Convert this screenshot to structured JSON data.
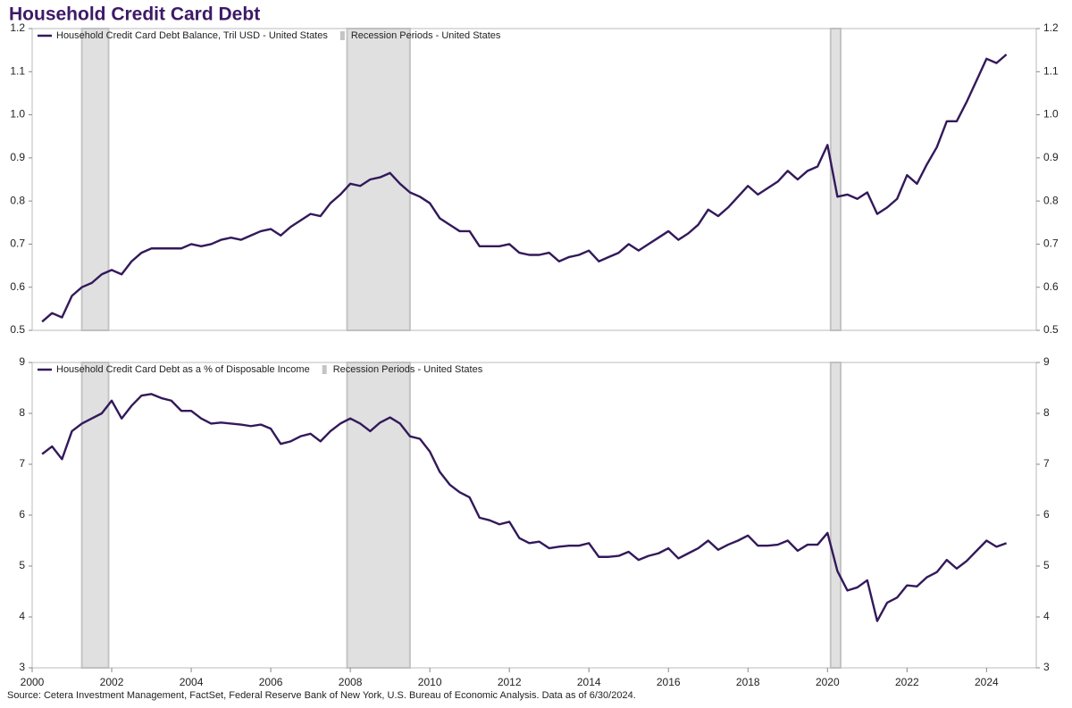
{
  "title": "Household Credit Card Debt",
  "source": "Source: Cetera Investment Management, FactSet, Federal Reserve Bank of New York, U.S. Bureau of Economic Analysis. Data as of 6/30/2024.",
  "chart_data": [
    {
      "type": "line",
      "x": [
        2000.25,
        2000.5,
        2000.75,
        2001,
        2001.25,
        2001.5,
        2001.75,
        2002,
        2002.25,
        2002.5,
        2002.75,
        2003,
        2003.25,
        2003.5,
        2003.75,
        2004,
        2004.25,
        2004.5,
        2004.75,
        2005,
        2005.25,
        2005.5,
        2005.75,
        2006,
        2006.25,
        2006.5,
        2006.75,
        2007,
        2007.25,
        2007.5,
        2007.75,
        2008,
        2008.25,
        2008.5,
        2008.75,
        2009,
        2009.25,
        2009.5,
        2009.75,
        2010,
        2010.25,
        2010.5,
        2010.75,
        2011,
        2011.25,
        2011.5,
        2011.75,
        2012,
        2012.25,
        2012.5,
        2012.75,
        2013,
        2013.25,
        2013.5,
        2013.75,
        2014,
        2014.25,
        2014.5,
        2014.75,
        2015,
        2015.25,
        2015.5,
        2015.75,
        2016,
        2016.25,
        2016.5,
        2016.75,
        2017,
        2017.25,
        2017.5,
        2017.75,
        2018,
        2018.25,
        2018.5,
        2018.75,
        2019,
        2019.25,
        2019.5,
        2019.75,
        2020,
        2020.25,
        2020.5,
        2020.75,
        2021,
        2021.25,
        2021.5,
        2021.75,
        2022,
        2022.25,
        2022.5,
        2022.75,
        2023,
        2023.25,
        2023.5,
        2023.75,
        2024,
        2024.25,
        2024.5
      ],
      "series": [
        {
          "name": "Household Credit Card Debt Balance, Tril USD - United States",
          "color": "#33195a",
          "values": [
            0.52,
            0.54,
            0.53,
            0.58,
            0.6,
            0.61,
            0.63,
            0.64,
            0.63,
            0.66,
            0.68,
            0.69,
            0.69,
            0.69,
            0.69,
            0.7,
            0.695,
            0.7,
            0.71,
            0.715,
            0.71,
            0.72,
            0.73,
            0.735,
            0.72,
            0.74,
            0.755,
            0.77,
            0.765,
            0.795,
            0.815,
            0.84,
            0.835,
            0.85,
            0.855,
            0.865,
            0.84,
            0.82,
            0.81,
            0.795,
            0.76,
            0.745,
            0.73,
            0.73,
            0.695,
            0.695,
            0.695,
            0.7,
            0.68,
            0.675,
            0.675,
            0.68,
            0.66,
            0.67,
            0.675,
            0.685,
            0.66,
            0.67,
            0.68,
            0.7,
            0.685,
            0.7,
            0.715,
            0.73,
            0.71,
            0.725,
            0.745,
            0.78,
            0.765,
            0.785,
            0.81,
            0.835,
            0.815,
            0.83,
            0.845,
            0.87,
            0.85,
            0.87,
            0.88,
            0.93,
            0.81,
            0.815,
            0.805,
            0.82,
            0.77,
            0.785,
            0.805,
            0.86,
            0.84,
            0.885,
            0.925,
            0.985,
            0.985,
            1.03,
            1.08,
            1.13,
            1.12,
            1.14
          ]
        }
      ],
      "recessions": {
        "name": "Recession Periods - United States",
        "color": "#e0e0e0",
        "periods": [
          [
            2001.25,
            2001.92
          ],
          [
            2007.92,
            2009.5
          ],
          [
            2020.08,
            2020.33
          ]
        ]
      },
      "xlim": [
        2000,
        2025.25
      ],
      "ylim": [
        0.5,
        1.2
      ],
      "yticks": [
        0.5,
        0.6,
        0.7,
        0.8,
        0.9,
        {
          "value": 1,
          "label": "1.0"
        },
        1.1,
        1.2
      ]
    },
    {
      "type": "line",
      "x": [
        2000.25,
        2000.5,
        2000.75,
        2001,
        2001.25,
        2001.5,
        2001.75,
        2002,
        2002.25,
        2002.5,
        2002.75,
        2003,
        2003.25,
        2003.5,
        2003.75,
        2004,
        2004.25,
        2004.5,
        2004.75,
        2005,
        2005.25,
        2005.5,
        2005.75,
        2006,
        2006.25,
        2006.5,
        2006.75,
        2007,
        2007.25,
        2007.5,
        2007.75,
        2008,
        2008.25,
        2008.5,
        2008.75,
        2009,
        2009.25,
        2009.5,
        2009.75,
        2010,
        2010.25,
        2010.5,
        2010.75,
        2011,
        2011.25,
        2011.5,
        2011.75,
        2012,
        2012.25,
        2012.5,
        2012.75,
        2013,
        2013.25,
        2013.5,
        2013.75,
        2014,
        2014.25,
        2014.5,
        2014.75,
        2015,
        2015.25,
        2015.5,
        2015.75,
        2016,
        2016.25,
        2016.5,
        2016.75,
        2017,
        2017.25,
        2017.5,
        2017.75,
        2018,
        2018.25,
        2018.5,
        2018.75,
        2019,
        2019.25,
        2019.5,
        2019.75,
        2020,
        2020.25,
        2020.5,
        2020.75,
        2021,
        2021.25,
        2021.5,
        2021.75,
        2022,
        2022.25,
        2022.5,
        2022.75,
        2023,
        2023.25,
        2023.5,
        2023.75,
        2024,
        2024.25,
        2024.5
      ],
      "series": [
        {
          "name": "Household Credit Card Debt as a % of Disposable Income",
          "color": "#33195a",
          "values": [
            7.2,
            7.35,
            7.1,
            7.65,
            7.8,
            7.9,
            8.0,
            8.25,
            7.9,
            8.15,
            8.35,
            8.38,
            8.3,
            8.25,
            8.05,
            8.05,
            7.9,
            7.8,
            7.82,
            7.8,
            7.78,
            7.75,
            7.78,
            7.7,
            7.4,
            7.45,
            7.55,
            7.6,
            7.45,
            7.65,
            7.8,
            7.9,
            7.8,
            7.65,
            7.82,
            7.92,
            7.8,
            7.55,
            7.5,
            7.25,
            6.85,
            6.6,
            6.45,
            6.35,
            5.95,
            5.9,
            5.82,
            5.87,
            5.55,
            5.45,
            5.48,
            5.35,
            5.38,
            5.4,
            5.4,
            5.45,
            5.18,
            5.18,
            5.2,
            5.28,
            5.12,
            5.2,
            5.25,
            5.35,
            5.15,
            5.25,
            5.35,
            5.5,
            5.32,
            5.42,
            5.5,
            5.6,
            5.4,
            5.4,
            5.42,
            5.5,
            5.3,
            5.42,
            5.42,
            5.65,
            4.9,
            4.52,
            4.58,
            4.72,
            3.92,
            4.28,
            4.38,
            4.62,
            4.6,
            4.78,
            4.88,
            5.12,
            4.95,
            5.1,
            5.3,
            5.5,
            5.38,
            5.45
          ]
        }
      ],
      "recessions": {
        "name": "Recession Periods - United States",
        "color": "#e0e0e0",
        "periods": [
          [
            2001.25,
            2001.92
          ],
          [
            2007.92,
            2009.5
          ],
          [
            2020.08,
            2020.33
          ]
        ]
      },
      "xlim": [
        2000,
        2025.25
      ],
      "xticks": [
        2000,
        2002,
        2004,
        2006,
        2008,
        2010,
        2012,
        2014,
        2016,
        2018,
        2020,
        2022,
        2024
      ],
      "ylim": [
        3,
        9
      ],
      "yticks": [
        3,
        4,
        5,
        6,
        7,
        8,
        9
      ]
    }
  ]
}
